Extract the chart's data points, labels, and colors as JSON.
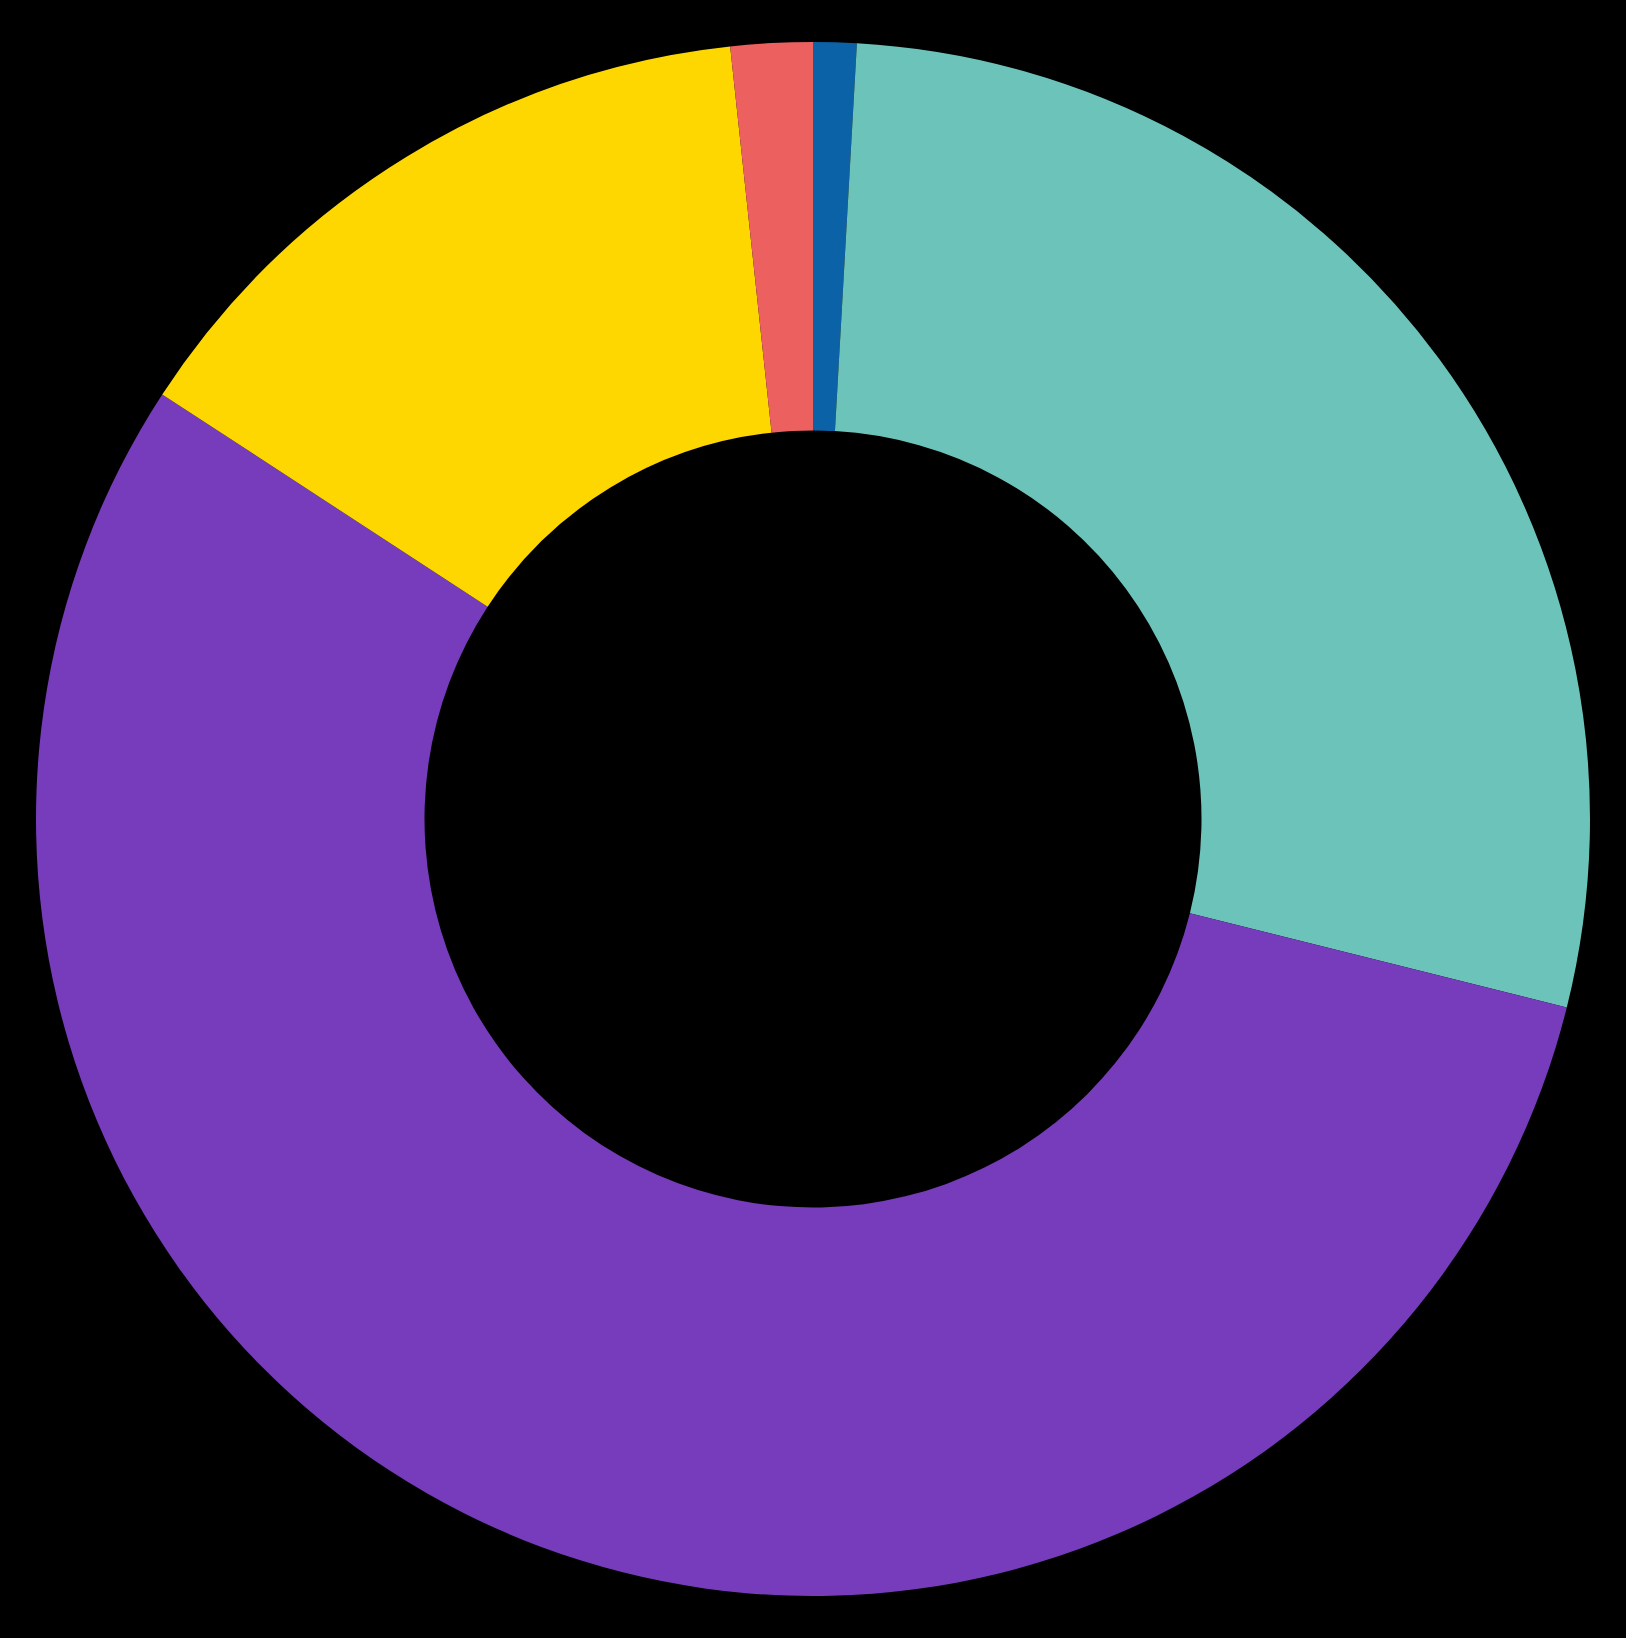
{
  "chart_data": {
    "type": "donut",
    "categories": [
      null,
      null,
      null,
      null,
      null
    ],
    "values": [
      0.9,
      28,
      55.3,
      14.1,
      1.7
    ],
    "colors": [
      "#0b62a6",
      "#6cc3b9",
      "#763cbb",
      "#ffd700",
      "#ec6060"
    ],
    "legend": false
  }
}
